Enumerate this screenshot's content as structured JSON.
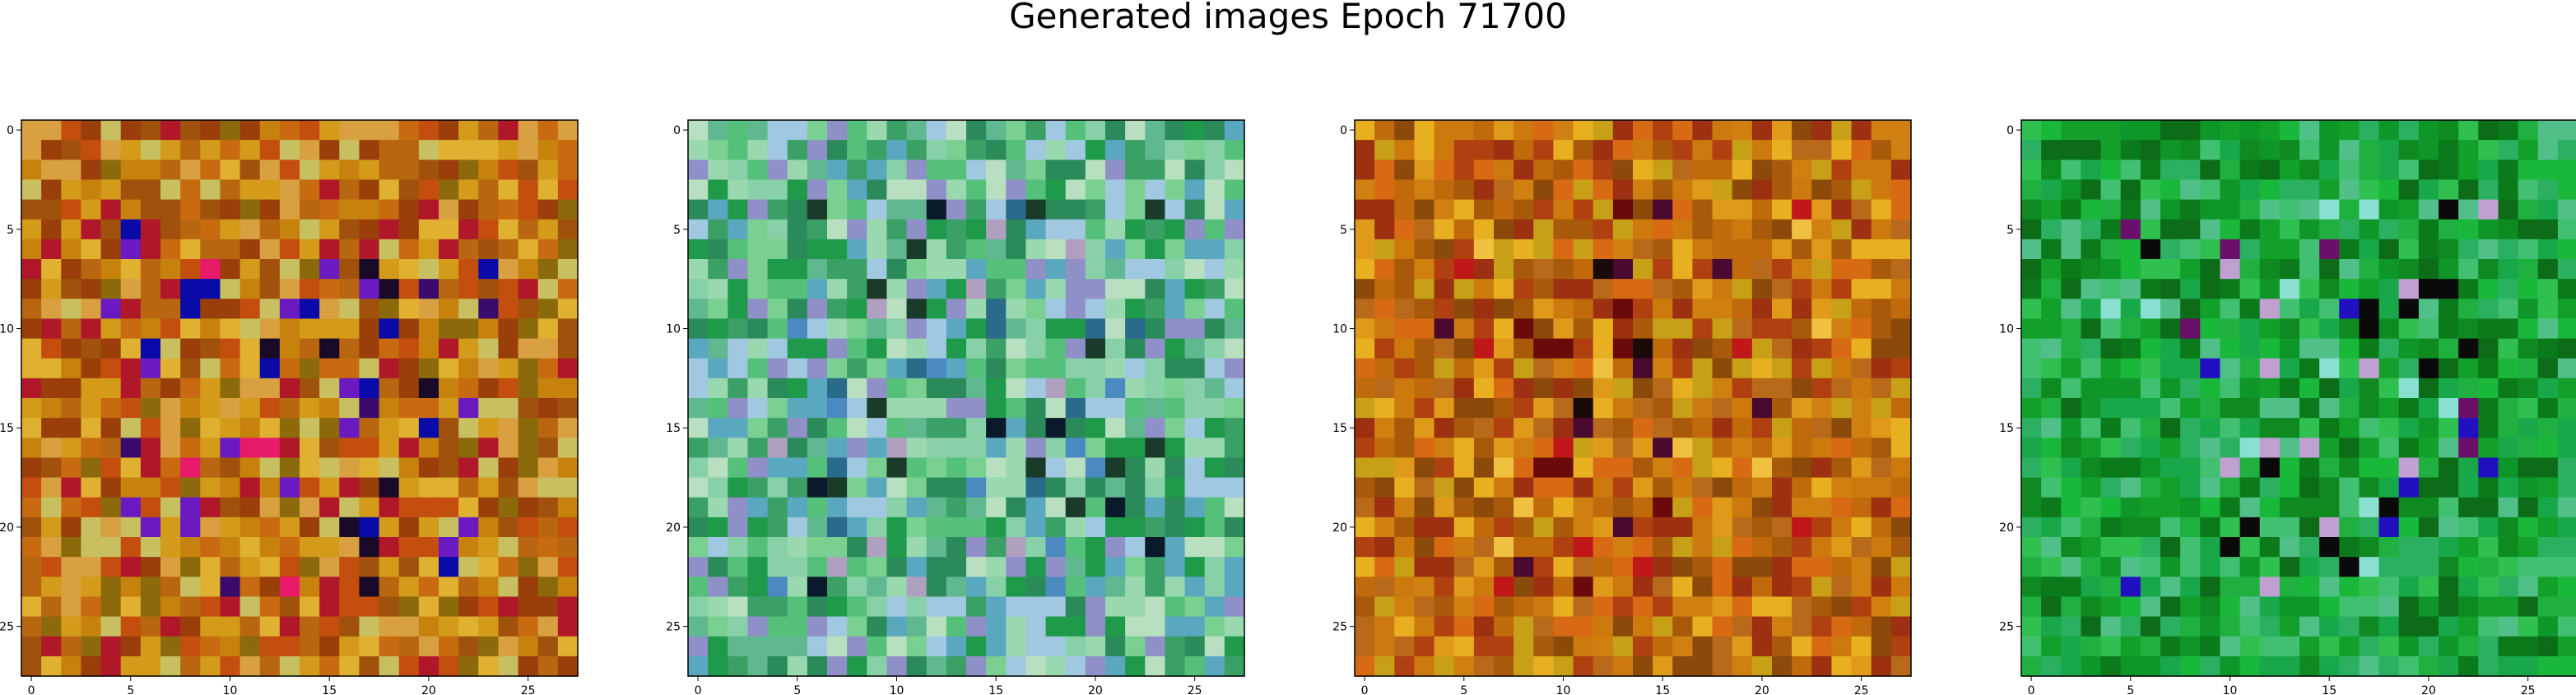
{
  "title": "Generated images Epoch 71700",
  "chart_data": {
    "type": "heatmap",
    "title": "Generated images Epoch 71700",
    "xlabel": "",
    "ylabel": "",
    "xlim": [
      -0.5,
      27.5
    ],
    "ylim": [
      27.5,
      -0.5
    ],
    "grid": false,
    "rows": 28,
    "cols": 28,
    "panels": [
      {
        "name": "image-1",
        "dominant_hue": "orange-brown",
        "base_color": "#b8660f"
      },
      {
        "name": "image-2",
        "dominant_hue": "light-green-cyan",
        "base_color": "#55c07a"
      },
      {
        "name": "image-3",
        "dominant_hue": "orange-brown",
        "base_color": "#c06a0c"
      },
      {
        "name": "image-4",
        "dominant_hue": "green",
        "base_color": "#12a02a"
      }
    ],
    "xticks": [
      "0",
      "5",
      "10",
      "15",
      "20",
      "25"
    ],
    "yticks": [
      "0",
      "5",
      "10",
      "15",
      "20",
      "25"
    ],
    "palettes": [
      [
        "#b8660f",
        "#c7820d",
        "#a0520c",
        "#d49a1a",
        "#8c6a0c",
        "#c44e0e",
        "#b0182a",
        "#c8c060",
        "#d8a040",
        "#9a3e0a",
        "#c86a10",
        "#e0b030"
      ],
      [
        "#55c07a",
        "#7ad090",
        "#9ad8b0",
        "#3aa066",
        "#b8e0c0",
        "#5aa8c0",
        "#2a8a5a",
        "#88d0a8",
        "#1e9a4a",
        "#a0c8e0",
        "#60b890",
        "#9090c8"
      ],
      [
        "#c06a0c",
        "#d08010",
        "#a85a0a",
        "#e09a1a",
        "#b04010",
        "#c8a018",
        "#8c4a0a",
        "#d86a14",
        "#b86a1a",
        "#9c3010",
        "#cc7a0e",
        "#e8b020"
      ],
      [
        "#12a02a",
        "#0e8a20",
        "#1ab83a",
        "#2ab060",
        "#0a7a1a",
        "#40c070",
        "#18a84a",
        "#30c050",
        "#0c6c18",
        "#50c088",
        "#20b040",
        "#0e9628"
      ]
    ],
    "accent_colors": [
      [
        "#0a0aa8",
        "#3a0a6c",
        "#1a0a2a",
        "#6a1ac0",
        "#e81a6a"
      ],
      [
        "#0a1a2a",
        "#2a6a8a",
        "#b0a0c0",
        "#1a3a2a",
        "#4a8ac0"
      ],
      [
        "#1a0a0a",
        "#6a0a0a",
        "#c01818",
        "#4a0a30",
        "#f0c040"
      ],
      [
        "#0a0a0a",
        "#2010c0",
        "#6a106a",
        "#8ae0d0",
        "#c0a0d0"
      ]
    ]
  }
}
